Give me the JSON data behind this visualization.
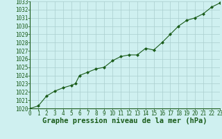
{
  "x": [
    0,
    1,
    2,
    3,
    4,
    5,
    5.5,
    6,
    7,
    8,
    9,
    10,
    11,
    12,
    13,
    14,
    15,
    16,
    17,
    18,
    19,
    20,
    21,
    22,
    23
  ],
  "y": [
    1020.0,
    1020.3,
    1021.5,
    1022.1,
    1022.5,
    1022.8,
    1023.0,
    1024.0,
    1024.4,
    1024.8,
    1025.0,
    1025.8,
    1026.3,
    1026.5,
    1026.5,
    1027.3,
    1027.1,
    1028.0,
    1029.0,
    1030.0,
    1030.7,
    1031.0,
    1031.5,
    1032.3,
    1032.8
  ],
  "xlim": [
    0,
    23
  ],
  "ylim": [
    1020,
    1033
  ],
  "yticks": [
    1020,
    1021,
    1022,
    1023,
    1024,
    1025,
    1026,
    1027,
    1028,
    1029,
    1030,
    1031,
    1032,
    1033
  ],
  "xticks": [
    0,
    1,
    2,
    3,
    4,
    5,
    6,
    7,
    8,
    9,
    10,
    11,
    12,
    13,
    14,
    15,
    16,
    17,
    18,
    19,
    20,
    21,
    22,
    23
  ],
  "xlabel": "Graphe pression niveau de la mer (hPa)",
  "line_color": "#1a5c1a",
  "marker": "D",
  "marker_size": 2.0,
  "background_color": "#cff0f0",
  "grid_color": "#aacece",
  "tick_label_color": "#1a5c1a",
  "xlabel_color": "#1a5c1a",
  "tick_fontsize": 5.5,
  "xlabel_fontsize": 7.5
}
